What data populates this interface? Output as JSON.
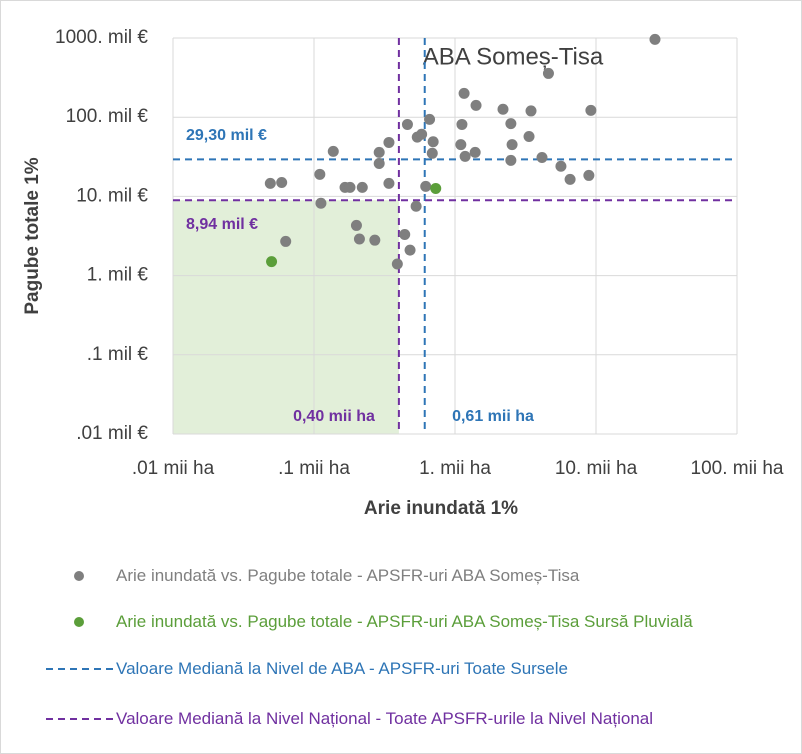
{
  "chart_data": {
    "type": "scatter",
    "title": "ABA Someș-Tisa",
    "x_label": "Arie inundată 1%",
    "y_label": "Pagube totale 1%",
    "xscale": "log",
    "yscale": "log",
    "xlim": [
      0.01,
      100
    ],
    "ylim": [
      0.01,
      1000
    ],
    "xticks": [
      {
        "value": 0.01,
        "label": ".01 mii ha"
      },
      {
        "value": 0.1,
        "label": ".1 mii ha"
      },
      {
        "value": 1,
        "label": "1. mii ha"
      },
      {
        "value": 10,
        "label": "10. mii ha"
      },
      {
        "value": 100,
        "label": "100. mii ha"
      }
    ],
    "yticks": [
      {
        "value": 0.01,
        "label": ".01 mil €"
      },
      {
        "value": 0.1,
        "label": ".1 mil €"
      },
      {
        "value": 1,
        "label": "1. mil €"
      },
      {
        "value": 10,
        "label": "10. mil €"
      },
      {
        "value": 100,
        "label": "100. mil €"
      },
      {
        "value": 1000,
        "label": "1000. mil €"
      }
    ],
    "grid": true,
    "series": [
      {
        "name": "Arie inundată vs. Pagube totale - APSFR-uri ABA Someș-Tisa",
        "color": "#7f7f7f",
        "x": [
          26.2,
          4.6,
          1.16,
          1.41,
          2.19,
          3.46,
          9.2,
          0.46,
          0.66,
          1.12,
          2.49,
          0.54,
          0.58,
          0.7,
          0.34,
          1.1,
          3.35,
          0.137,
          0.29,
          0.69,
          1.18,
          1.39,
          2.54,
          2.49,
          4.14,
          0.29,
          5.64,
          6.55,
          8.9,
          0.11,
          0.049,
          0.059,
          0.166,
          0.18,
          0.22,
          0.34,
          0.62,
          0.112,
          0.53,
          0.2,
          0.44,
          0.21,
          0.27,
          0.063,
          0.48,
          0.39
        ],
        "values": [
          960,
          357,
          200,
          141,
          126,
          120,
          122,
          81,
          94,
          81,
          83,
          56,
          61,
          49,
          48,
          45,
          57,
          37,
          36,
          35,
          32,
          36,
          45,
          28.5,
          31,
          26,
          24,
          16.4,
          18.4,
          19,
          14.6,
          15,
          13,
          13,
          13,
          14.6,
          13.4,
          8.2,
          7.5,
          4.3,
          3.3,
          2.9,
          2.8,
          2.7,
          2.1,
          1.4
        ]
      },
      {
        "name": "Arie inundată vs. Pagube totale - APSFR-uri ABA Someș-Tisa Sursă Pluvială",
        "color": "#5b9e3a",
        "x": [
          0.05,
          0.73
        ],
        "values": [
          1.5,
          12.6
        ]
      }
    ],
    "reference_lines": [
      {
        "name": "Valoare Mediană la Nivel de ABA - APSFR-uri  Toate Sursele",
        "color": "#2e75b6",
        "x": 0.61,
        "x_label": "0,61 mii ha",
        "y": 29.3,
        "y_label": "29,30 mil €"
      },
      {
        "name": "Valoare Mediană la Nivel Național - Toate APSFR-urile la Nivel Național",
        "color": "#7030a0",
        "x": 0.4,
        "x_label": "0,40 mii ha",
        "y": 8.94,
        "y_label": "8,94 mil €"
      }
    ]
  }
}
